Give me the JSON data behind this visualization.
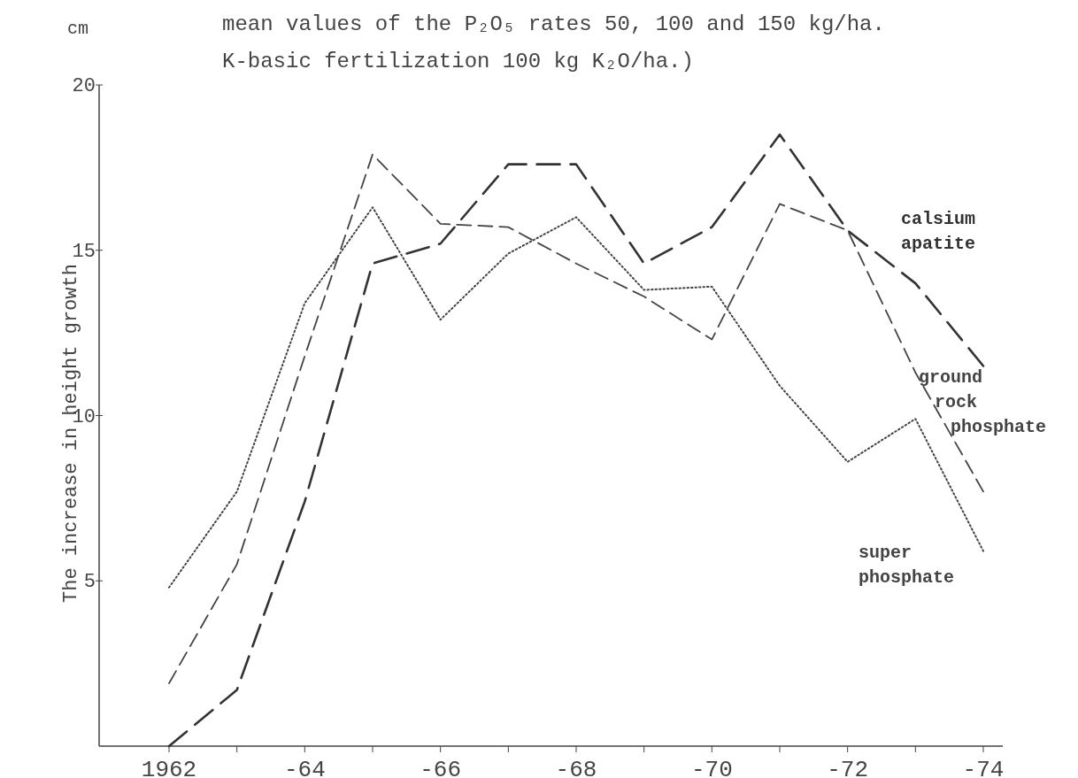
{
  "chart_data": {
    "type": "line",
    "title": "mean values of the P₂O₅ rates 50, 100 and 150 kg/ha.",
    "subtitle": "K-basic fertilization 100 kg K₂O/ha.)",
    "ylabel": "The increase in height growth",
    "annotations": [
      "cm"
    ],
    "categories": [
      "1962",
      null,
      "-64",
      null,
      "-66",
      null,
      "-68",
      null,
      "-70",
      null,
      "-72",
      null,
      "-74"
    ],
    "series": [
      {
        "name": "calsium apatite",
        "color": "#333333",
        "line_style": "dashed",
        "values": [
          0,
          1.7,
          7.4,
          14.6,
          15.2,
          17.6,
          17.6,
          14.6,
          15.7,
          18.5,
          15.6,
          14.0,
          11.5
        ]
      },
      {
        "name": "ground rock phosphate",
        "color": "#444444",
        "line_style": "dashed",
        "values": [
          1.9,
          5.5,
          11.8,
          17.9,
          15.8,
          15.7,
          14.6,
          13.6,
          12.3,
          16.4,
          15.6,
          11.3,
          7.7
        ]
      },
      {
        "name": "super phosphate",
        "color": "#444444",
        "line_style": "dotted",
        "values": [
          4.8,
          7.7,
          13.4,
          16.3,
          12.9,
          14.9,
          16.0,
          13.8,
          13.9,
          10.9,
          8.6,
          9.9,
          5.9
        ]
      }
    ],
    "ylim": [
      0,
      20
    ],
    "yticks": [
      5,
      10,
      15,
      20
    ],
    "grid": false,
    "marker": "none"
  }
}
